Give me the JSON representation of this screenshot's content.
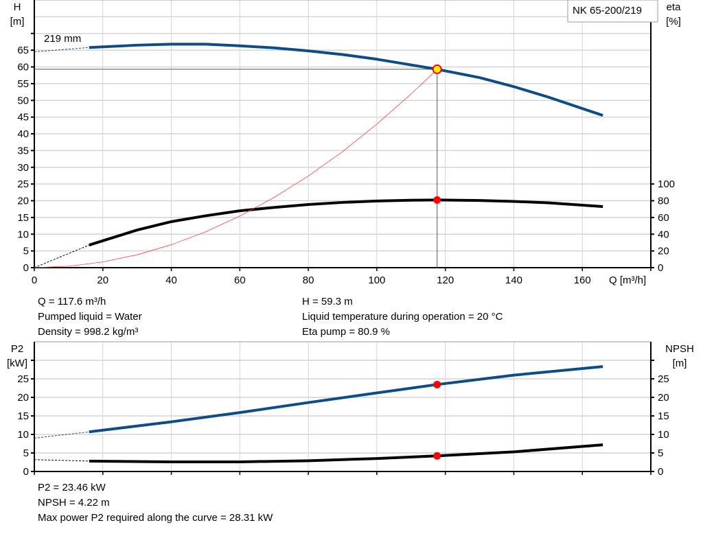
{
  "chart_data": [
    {
      "type": "line",
      "x_label": "Q [m³/h]",
      "x_ticks": [
        0,
        20,
        40,
        60,
        80,
        100,
        120,
        140,
        160
      ],
      "xlim": [
        0,
        180
      ],
      "left_axis": {
        "label_line1": "H",
        "label_line2": "[m]",
        "ylim": [
          0,
          80
        ],
        "tick_labels": [
          0,
          5,
          10,
          15,
          20,
          25,
          30,
          35,
          40,
          45,
          50,
          55,
          60,
          65
        ]
      },
      "right_axis": {
        "label_line1": "eta",
        "label_line2": "[%]",
        "ylim": [
          0,
          100
        ],
        "tick_labels": [
          0,
          20,
          40,
          60,
          80,
          100
        ]
      },
      "grid": true,
      "legend_box": "NK 65-200/219",
      "curve_label": "219 mm",
      "series": [
        {
          "key": "H",
          "axis": "left",
          "color": "#0d4c86",
          "x": [
            16,
            30,
            40,
            50,
            60,
            70,
            80,
            90,
            100,
            110,
            117.6,
            130,
            140,
            150,
            166
          ],
          "y": [
            65.8,
            66.5,
            66.8,
            66.8,
            66.3,
            65.7,
            64.8,
            63.7,
            62.3,
            60.6,
            59.3,
            56.8,
            54.1,
            51.0,
            45.5
          ],
          "extrapolated": {
            "x": [
              0,
              16
            ],
            "y": [
              64.5,
              65.8
            ]
          }
        },
        {
          "key": "eta",
          "axis": "right",
          "color": "#000000",
          "x": [
            16,
            30,
            40,
            50,
            60,
            70,
            80,
            90,
            100,
            110,
            117.6,
            130,
            140,
            150,
            166
          ],
          "y": [
            27,
            45,
            55,
            62,
            68,
            72,
            75.5,
            78,
            79.7,
            80.6,
            80.9,
            80.3,
            79.2,
            77.5,
            73
          ],
          "extrapolated": {
            "x": [
              0,
              16
            ],
            "y": [
              0,
              27
            ]
          }
        },
        {
          "key": "system",
          "axis": "left",
          "color": "#ff4040",
          "x": [
            0,
            10,
            20,
            30,
            40,
            50,
            60,
            70,
            80,
            90,
            100,
            110,
            117.6
          ],
          "y": [
            0,
            0.43,
            1.72,
            3.86,
            6.86,
            10.72,
            15.44,
            21.0,
            27.4,
            34.7,
            42.9,
            51.9,
            59.3
          ]
        }
      ],
      "duty_point": {
        "Q": 117.6,
        "H": 59.3,
        "eta": 80.9
      }
    },
    {
      "type": "line",
      "x_ticks": [
        0,
        20,
        40,
        60,
        80,
        100,
        120,
        140,
        160
      ],
      "xlim": [
        0,
        180
      ],
      "left_axis": {
        "label_line1": "P2",
        "label_line2": "[kW]",
        "ylim": [
          0,
          35
        ],
        "tick_labels": [
          0,
          5,
          10,
          15,
          20,
          25
        ]
      },
      "right_axis": {
        "label_line1": "NPSH",
        "label_line2": "[m]",
        "ylim": [
          0,
          35
        ],
        "tick_labels": [
          0,
          5,
          10,
          15,
          20,
          25
        ]
      },
      "grid": true,
      "series": [
        {
          "key": "P2",
          "axis": "left",
          "color": "#0d4c86",
          "x": [
            16,
            40,
            60,
            80,
            100,
            117.6,
            140,
            166
          ],
          "y": [
            10.7,
            13.4,
            15.9,
            18.6,
            21.2,
            23.46,
            26.0,
            28.31
          ],
          "extrapolated": {
            "x": [
              0,
              16
            ],
            "y": [
              9.0,
              10.7
            ]
          }
        },
        {
          "key": "NPSH",
          "axis": "right",
          "color": "#000000",
          "x": [
            16,
            40,
            60,
            80,
            100,
            117.6,
            140,
            166
          ],
          "y": [
            2.8,
            2.6,
            2.6,
            2.9,
            3.5,
            4.22,
            5.3,
            7.2
          ],
          "extrapolated": {
            "x": [
              0,
              16
            ],
            "y": [
              3.2,
              2.8
            ]
          }
        }
      ],
      "duty_point": {
        "Q": 117.6,
        "P2": 23.46,
        "NPSH": 4.22
      }
    }
  ],
  "info_top": {
    "q": "Q = 117.6 m³/h",
    "liquid": "Pumped liquid = Water",
    "density": "Density = 998.2 kg/m³",
    "h": "H = 59.3 m",
    "temp": "Liquid temperature during operation = 20 °C",
    "eta": "Eta pump = 80.9 %"
  },
  "info_bottom": {
    "p2": "P2 = 23.46 kW",
    "npsh": "NPSH = 4.22 m",
    "max_power": "Max power P2 required along the curve = 28.31 kW"
  }
}
